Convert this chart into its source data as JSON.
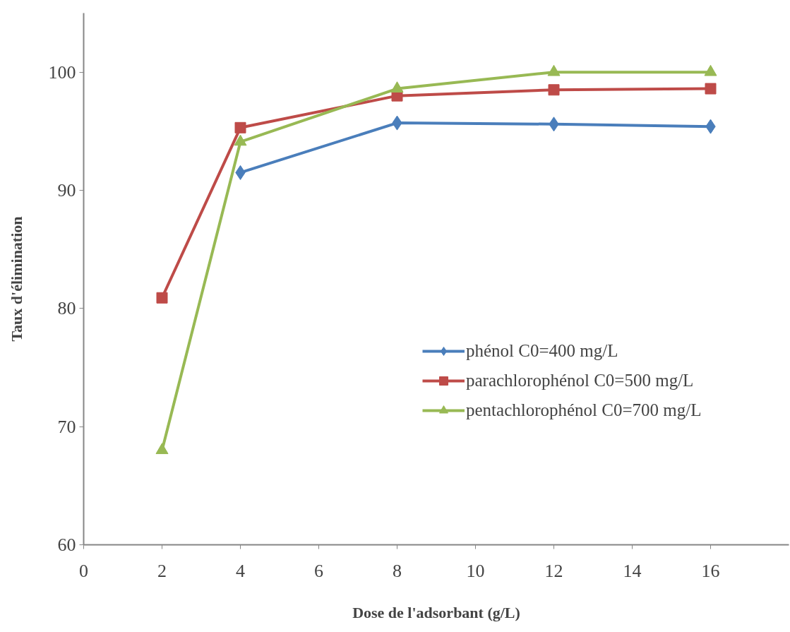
{
  "chart_data": {
    "type": "line",
    "xlabel": "Dose de l'adsorbant (g/L)",
    "ylabel": "Taux d'élimination",
    "xlim": [
      0,
      18
    ],
    "xticks": [
      0,
      2,
      4,
      6,
      8,
      10,
      12,
      14,
      16
    ],
    "ylim": [
      60,
      105
    ],
    "yticks": [
      60,
      70,
      80,
      90,
      100
    ],
    "grid": false,
    "legend": "right",
    "line_style": "solid",
    "series": [
      {
        "name": "phénol C0=400 mg/L",
        "color": "#4a7ebb",
        "marker": "diamond",
        "x": [
          4,
          8,
          12,
          16
        ],
        "values": [
          91.5,
          95.7,
          95.6,
          95.4
        ]
      },
      {
        "name": "parachlorophénol C0=500 mg/L",
        "color": "#be4b48",
        "marker": "square",
        "x": [
          2,
          4,
          8,
          12,
          16
        ],
        "values": [
          80.9,
          95.3,
          98.0,
          98.5,
          98.6
        ]
      },
      {
        "name": "pentachlorophénol C0=700 mg/L",
        "color": "#98b954",
        "marker": "triangle",
        "x": [
          2,
          4,
          8,
          12,
          16
        ],
        "values": [
          68.0,
          94.1,
          98.6,
          100,
          100
        ]
      }
    ]
  }
}
